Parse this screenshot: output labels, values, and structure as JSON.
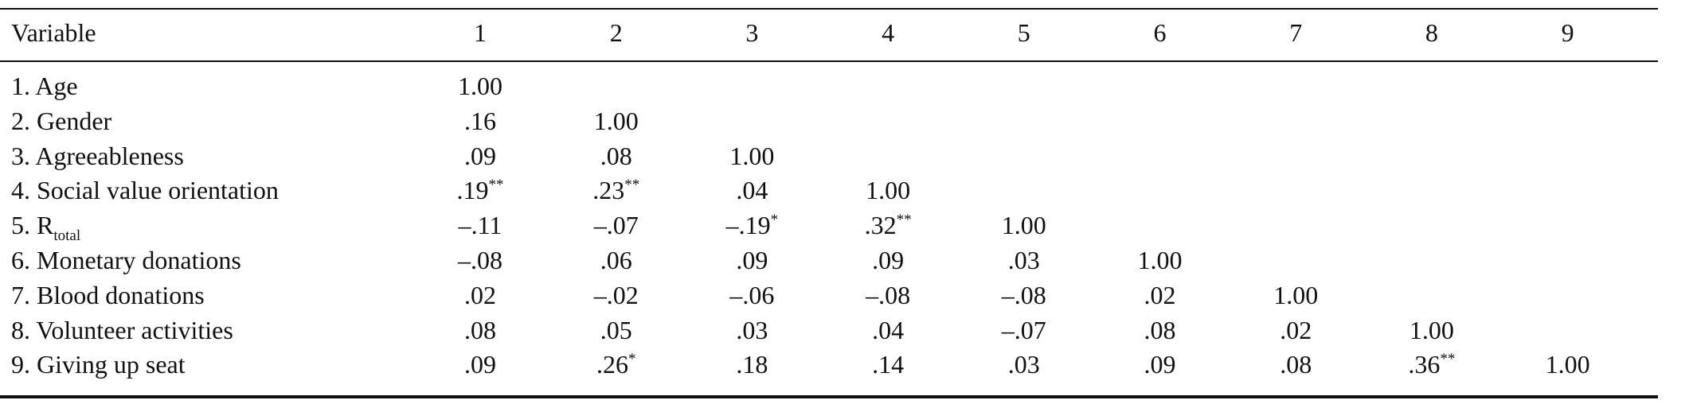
{
  "table": {
    "columns": [
      "Variable",
      "1",
      "2",
      "3",
      "4",
      "5",
      "6",
      "7",
      "8",
      "9"
    ],
    "rows": [
      {
        "label": {
          "text": "1. Age"
        },
        "cells": [
          {
            "text": "1.00"
          }
        ]
      },
      {
        "label": {
          "text": "2. Gender"
        },
        "cells": [
          {
            "text": ".16"
          },
          {
            "text": "1.00"
          }
        ]
      },
      {
        "label": {
          "text": "3. Agreeableness"
        },
        "cells": [
          {
            "text": ".09"
          },
          {
            "text": ".08"
          },
          {
            "text": "1.00"
          }
        ]
      },
      {
        "label": {
          "text": "4. Social value orientation"
        },
        "cells": [
          {
            "text": ".19",
            "sup": "**"
          },
          {
            "text": ".23",
            "sup": "**"
          },
          {
            "text": ".04"
          },
          {
            "text": "1.00"
          }
        ]
      },
      {
        "label": {
          "text": "5. R",
          "sub": "total"
        },
        "cells": [
          {
            "text": "–.11"
          },
          {
            "text": "–.07"
          },
          {
            "text": "–.19",
            "sup": "*"
          },
          {
            "text": ".32",
            "sup": "**"
          },
          {
            "text": "1.00"
          }
        ]
      },
      {
        "label": {
          "text": "6. Monetary donations"
        },
        "cells": [
          {
            "text": "–.08"
          },
          {
            "text": ".06"
          },
          {
            "text": ".09"
          },
          {
            "text": ".09"
          },
          {
            "text": ".03"
          },
          {
            "text": "1.00"
          }
        ]
      },
      {
        "label": {
          "text": "7. Blood donations"
        },
        "cells": [
          {
            "text": ".02"
          },
          {
            "text": "–.02"
          },
          {
            "text": "–.06"
          },
          {
            "text": "–.08"
          },
          {
            "text": "–.08"
          },
          {
            "text": ".02"
          },
          {
            "text": "1.00"
          }
        ]
      },
      {
        "label": {
          "text": "8. Volunteer activities"
        },
        "cells": [
          {
            "text": ".08"
          },
          {
            "text": ".05"
          },
          {
            "text": ".03"
          },
          {
            "text": ".04"
          },
          {
            "text": "–.07"
          },
          {
            "text": ".08"
          },
          {
            "text": ".02"
          },
          {
            "text": "1.00"
          }
        ]
      },
      {
        "label": {
          "text": "9. Giving up seat"
        },
        "cells": [
          {
            "text": ".09"
          },
          {
            "text": ".26",
            "sup": "*"
          },
          {
            "text": ".18"
          },
          {
            "text": ".14"
          },
          {
            "text": ".03"
          },
          {
            "text": ".09"
          },
          {
            "text": ".08"
          },
          {
            "text": ".36",
            "sup": "**"
          },
          {
            "text": "1.00"
          }
        ]
      }
    ]
  }
}
